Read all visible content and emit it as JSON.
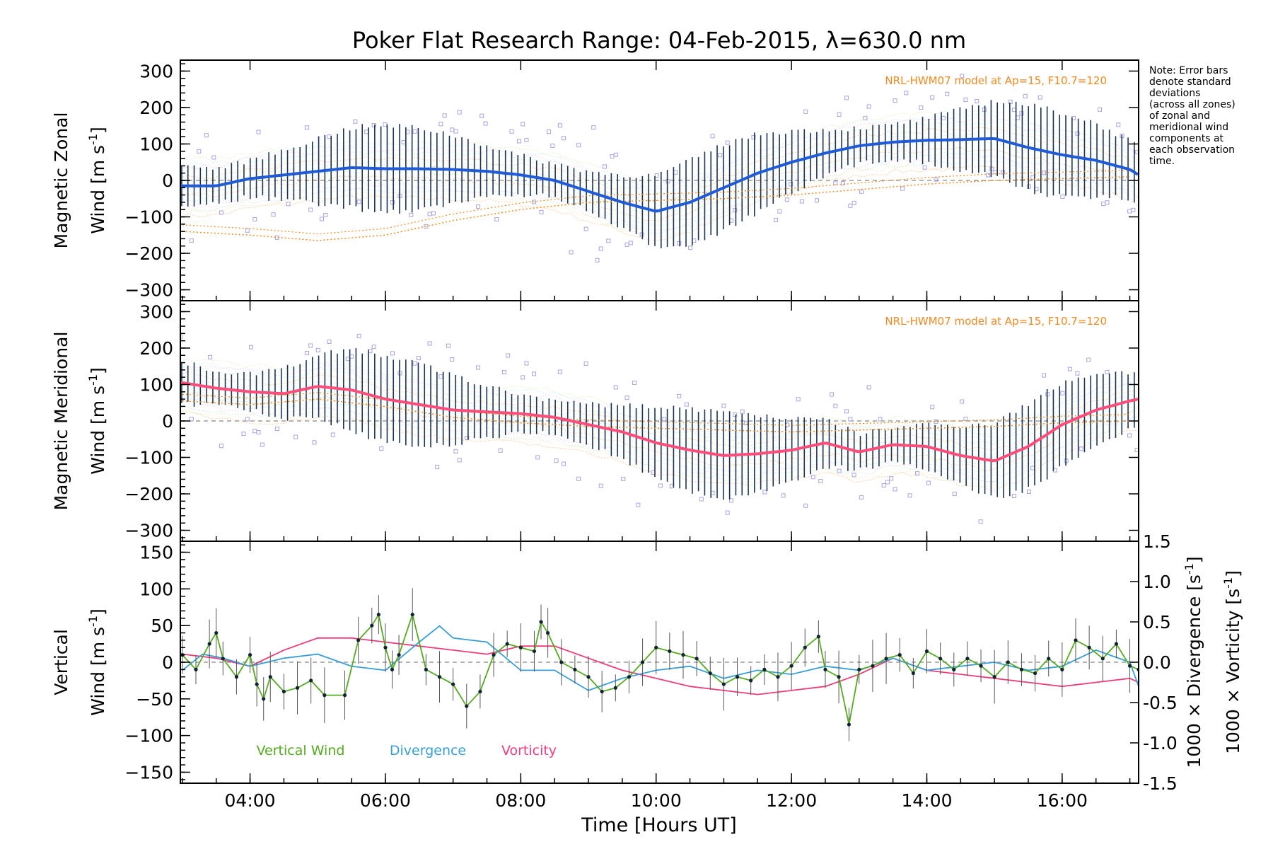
{
  "title": "Poker Flat Research Range: 04-Feb-2015, λ=630.0 nm",
  "note": [
    "Note: Error bars",
    "denote standard",
    "deviations",
    "(across all zones)",
    "of zonal and",
    "meridional wind",
    "components at",
    "each observation",
    "time."
  ],
  "colors": {
    "zonal": "#1f5bd6",
    "zonal_light": "#3aa0e0",
    "meridional": "#ff4d7a",
    "vertical": "#55aa22",
    "divergence": "#3a9fd6",
    "vorticity": "#ee3e7a",
    "model": "#f08a24",
    "scatter": "#a9a3e0",
    "errorbar": "#1a3355"
  },
  "xaxis": {
    "label": "Time [Hours UT]",
    "ticks": [
      "04:00",
      "06:00",
      "08:00",
      "10:00",
      "12:00",
      "14:00",
      "16:00"
    ],
    "tick_values": [
      4,
      6,
      8,
      10,
      12,
      14,
      16
    ],
    "range": [
      2.97,
      17.13
    ]
  },
  "chart_data": [
    {
      "type": "line",
      "panel": "zonal",
      "ylabel_line1": "Magnetic Zonal",
      "ylabel_line2": "Wind [m s",
      "ylabel_sup": "-1",
      "ylabel_end": "]",
      "ylim": [
        -330,
        330
      ],
      "yticks": [
        300,
        200,
        100,
        0,
        -100,
        -200,
        -300
      ],
      "model_label": "NRL-HWM07 model at Ap=15, F10.7=120",
      "series": [
        {
          "values": [
            [
              3.0,
              -15
            ],
            [
              3.5,
              -15
            ],
            [
              4.0,
              5
            ],
            [
              4.5,
              15
            ],
            [
              5.0,
              25
            ],
            [
              5.5,
              35
            ],
            [
              6.0,
              32
            ],
            [
              6.5,
              32
            ],
            [
              7.0,
              30
            ],
            [
              7.5,
              25
            ],
            [
              8.0,
              15
            ],
            [
              8.5,
              0
            ],
            [
              9.0,
              -30
            ],
            [
              9.5,
              -60
            ],
            [
              10.0,
              -85
            ],
            [
              10.5,
              -60
            ],
            [
              11.0,
              -20
            ],
            [
              11.5,
              20
            ],
            [
              12.0,
              50
            ],
            [
              12.5,
              75
            ],
            [
              13.0,
              95
            ],
            [
              13.5,
              105
            ],
            [
              14.0,
              110
            ],
            [
              14.5,
              112
            ],
            [
              15.0,
              115
            ],
            [
              15.5,
              90
            ],
            [
              16.0,
              70
            ],
            [
              16.5,
              55
            ],
            [
              17.0,
              30
            ],
            [
              17.13,
              15
            ]
          ]
        }
      ],
      "model": [
        [
          3.0,
          -140
        ],
        [
          4.0,
          -150
        ],
        [
          5.0,
          -165
        ],
        [
          6.0,
          -150
        ],
        [
          7.0,
          -110
        ],
        [
          8.0,
          -80
        ],
        [
          9.0,
          -60
        ],
        [
          10.0,
          -55
        ],
        [
          11.0,
          -50
        ],
        [
          12.0,
          -40
        ],
        [
          13.0,
          -25
        ],
        [
          14.0,
          -10
        ],
        [
          15.0,
          0
        ],
        [
          16.0,
          5
        ],
        [
          17.0,
          10
        ]
      ]
    },
    {
      "type": "line",
      "panel": "meridional",
      "ylabel_line1": "Magnetic Meridional",
      "ylabel_line2": "Wind [m s",
      "ylabel_sup": "-1",
      "ylabel_end": "]",
      "ylim": [
        -330,
        330
      ],
      "yticks": [
        300,
        200,
        100,
        0,
        -100,
        -200,
        -300
      ],
      "model_label": "NRL-HWM07 model at Ap=15, F10.7=120",
      "series": [
        {
          "values": [
            [
              3.0,
              105
            ],
            [
              3.5,
              90
            ],
            [
              4.0,
              80
            ],
            [
              4.5,
              75
            ],
            [
              5.0,
              95
            ],
            [
              5.5,
              85
            ],
            [
              6.0,
              60
            ],
            [
              6.5,
              45
            ],
            [
              7.0,
              30
            ],
            [
              7.5,
              25
            ],
            [
              8.0,
              20
            ],
            [
              8.5,
              10
            ],
            [
              9.0,
              -10
            ],
            [
              9.5,
              -30
            ],
            [
              10.0,
              -60
            ],
            [
              10.5,
              -80
            ],
            [
              11.0,
              -95
            ],
            [
              11.5,
              -90
            ],
            [
              12.0,
              -80
            ],
            [
              12.5,
              -60
            ],
            [
              13.0,
              -85
            ],
            [
              13.5,
              -65
            ],
            [
              14.0,
              -70
            ],
            [
              14.5,
              -95
            ],
            [
              15.0,
              -110
            ],
            [
              15.5,
              -70
            ],
            [
              16.0,
              -10
            ],
            [
              16.5,
              30
            ],
            [
              17.0,
              55
            ],
            [
              17.13,
              60
            ]
          ]
        }
      ],
      "model": [
        [
          3.0,
          55
        ],
        [
          4.0,
          45
        ],
        [
          5.0,
          60
        ],
        [
          6.0,
          40
        ],
        [
          7.0,
          10
        ],
        [
          8.0,
          -5
        ],
        [
          9.0,
          -15
        ],
        [
          10.0,
          -20
        ],
        [
          11.0,
          -25
        ],
        [
          12.0,
          -30
        ],
        [
          13.0,
          -25
        ],
        [
          14.0,
          -20
        ],
        [
          15.0,
          -15
        ],
        [
          16.0,
          -5
        ],
        [
          17.0,
          0
        ]
      ]
    },
    {
      "type": "line",
      "panel": "vertical",
      "ylabel_line1": "Vertical",
      "ylabel_line2": "Wind [m s",
      "ylabel_sup": "-1",
      "ylabel_end": "]",
      "ylim": [
        -165,
        165
      ],
      "yticks": [
        150,
        100,
        50,
        0,
        -50,
        -100,
        -150
      ],
      "right_axis": {
        "ylim": [
          -1.5,
          1.5
        ],
        "ticks": [
          "1.5",
          "1.0",
          "0.5",
          "0.0",
          "-0.5",
          "-1.0",
          "-1.5"
        ],
        "tick_values": [
          1.5,
          1.0,
          0.5,
          0.0,
          -0.5,
          -1.0,
          -1.5
        ],
        "label_div_prefix": "1000 × Divergence [s",
        "label_vor_prefix": "1000 × Vorticity [s",
        "sup": "-1",
        "end": "]"
      },
      "legend": [
        "Vertical Wind",
        "Divergence",
        "Vorticity"
      ],
      "series": [
        {
          "name": "Vertical Wind",
          "values": [
            [
              3.0,
              10
            ],
            [
              3.2,
              -10
            ],
            [
              3.4,
              25
            ],
            [
              3.5,
              40
            ],
            [
              3.6,
              5
            ],
            [
              3.8,
              -20
            ],
            [
              4.0,
              10
            ],
            [
              4.1,
              -30
            ],
            [
              4.2,
              -50
            ],
            [
              4.3,
              -20
            ],
            [
              4.5,
              -40
            ],
            [
              4.7,
              -35
            ],
            [
              4.9,
              -25
            ],
            [
              5.1,
              -45
            ],
            [
              5.4,
              -45
            ],
            [
              5.6,
              30
            ],
            [
              5.8,
              50
            ],
            [
              5.9,
              65
            ],
            [
              6.0,
              20
            ],
            [
              6.1,
              -10
            ],
            [
              6.2,
              10
            ],
            [
              6.4,
              65
            ],
            [
              6.6,
              -10
            ],
            [
              6.8,
              -20
            ],
            [
              7.0,
              -30
            ],
            [
              7.2,
              -60
            ],
            [
              7.4,
              -40
            ],
            [
              7.6,
              10
            ],
            [
              7.8,
              25
            ],
            [
              8.0,
              20
            ],
            [
              8.2,
              15
            ],
            [
              8.3,
              55
            ],
            [
              8.4,
              40
            ],
            [
              8.6,
              0
            ],
            [
              8.8,
              -10
            ],
            [
              9.0,
              -20
            ],
            [
              9.2,
              -40
            ],
            [
              9.4,
              -35
            ],
            [
              9.6,
              -20
            ],
            [
              9.8,
              0
            ],
            [
              10.0,
              20
            ],
            [
              10.2,
              15
            ],
            [
              10.4,
              10
            ],
            [
              10.6,
              5
            ],
            [
              10.8,
              -15
            ],
            [
              11.0,
              -30
            ],
            [
              11.2,
              -20
            ],
            [
              11.4,
              -25
            ],
            [
              11.6,
              -10
            ],
            [
              11.8,
              -20
            ],
            [
              12.0,
              -5
            ],
            [
              12.2,
              20
            ],
            [
              12.4,
              35
            ],
            [
              12.5,
              -10
            ],
            [
              12.7,
              -20
            ],
            [
              12.85,
              -85
            ],
            [
              13.0,
              -10
            ],
            [
              13.2,
              -5
            ],
            [
              13.4,
              5
            ],
            [
              13.6,
              10
            ],
            [
              13.8,
              -15
            ],
            [
              14.0,
              15
            ],
            [
              14.2,
              5
            ],
            [
              14.4,
              -10
            ],
            [
              14.6,
              5
            ],
            [
              14.8,
              -5
            ],
            [
              15.0,
              -20
            ],
            [
              15.2,
              0
            ],
            [
              15.4,
              -10
            ],
            [
              15.6,
              -15
            ],
            [
              15.8,
              5
            ],
            [
              16.0,
              -10
            ],
            [
              16.2,
              30
            ],
            [
              16.4,
              20
            ],
            [
              16.6,
              5
            ],
            [
              16.8,
              25
            ],
            [
              17.0,
              -5
            ],
            [
              17.13,
              -10
            ]
          ]
        },
        {
          "name": "Divergence",
          "values": [
            [
              3.0,
              -0.1
            ],
            [
              3.3,
              0.1
            ],
            [
              3.6,
              0.05
            ],
            [
              4.0,
              -0.05
            ],
            [
              4.5,
              0.05
            ],
            [
              5.0,
              0.1
            ],
            [
              5.5,
              -0.05
            ],
            [
              6.0,
              -0.1
            ],
            [
              6.5,
              0.25
            ],
            [
              6.8,
              0.45
            ],
            [
              7.0,
              0.3
            ],
            [
              7.5,
              0.25
            ],
            [
              8.0,
              -0.1
            ],
            [
              8.5,
              -0.1
            ],
            [
              9.0,
              -0.35
            ],
            [
              9.5,
              -0.2
            ],
            [
              10.0,
              -0.1
            ],
            [
              10.5,
              -0.05
            ],
            [
              11.0,
              -0.2
            ],
            [
              11.5,
              -0.1
            ],
            [
              12.0,
              -0.15
            ],
            [
              12.5,
              -0.05
            ],
            [
              13.0,
              -0.1
            ],
            [
              13.5,
              0.05
            ],
            [
              14.0,
              -0.1
            ],
            [
              14.5,
              -0.05
            ],
            [
              15.0,
              0.0
            ],
            [
              15.5,
              -0.1
            ],
            [
              16.0,
              -0.05
            ],
            [
              16.5,
              0.15
            ],
            [
              17.0,
              0.0
            ],
            [
              17.13,
              -0.3
            ]
          ]
        },
        {
          "name": "Vorticity",
          "values": [
            [
              3.0,
              0.1
            ],
            [
              3.5,
              0.05
            ],
            [
              4.0,
              -0.05
            ],
            [
              4.5,
              0.15
            ],
            [
              5.0,
              0.3
            ],
            [
              5.5,
              0.3
            ],
            [
              6.0,
              0.25
            ],
            [
              6.5,
              0.2
            ],
            [
              7.0,
              0.15
            ],
            [
              7.5,
              0.1
            ],
            [
              8.0,
              0.2
            ],
            [
              8.5,
              0.2
            ],
            [
              9.0,
              0.05
            ],
            [
              9.5,
              -0.1
            ],
            [
              10.0,
              -0.2
            ],
            [
              10.5,
              -0.3
            ],
            [
              11.0,
              -0.35
            ],
            [
              11.5,
              -0.4
            ],
            [
              12.0,
              -0.35
            ],
            [
              12.5,
              -0.3
            ],
            [
              13.0,
              -0.15
            ],
            [
              13.5,
              0.05
            ],
            [
              14.0,
              -0.1
            ],
            [
              14.5,
              -0.15
            ],
            [
              15.0,
              -0.2
            ],
            [
              15.5,
              -0.25
            ],
            [
              16.0,
              -0.3
            ],
            [
              16.5,
              -0.25
            ],
            [
              17.0,
              -0.2
            ],
            [
              17.13,
              -0.25
            ]
          ]
        }
      ]
    }
  ]
}
